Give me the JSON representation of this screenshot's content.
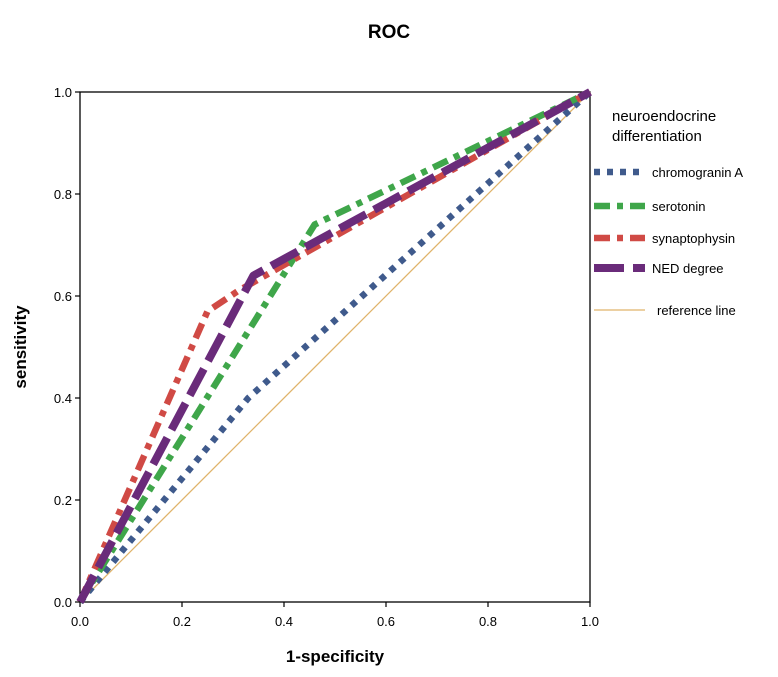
{
  "chart_data": {
    "type": "line",
    "title": "ROC",
    "xlabel": "1-specificity",
    "ylabel": "sensitivity",
    "xlim": [
      0,
      1
    ],
    "ylim": [
      0,
      1
    ],
    "x_ticks": [
      "0.0",
      "0.2",
      "0.4",
      "0.6",
      "0.8",
      "1.0"
    ],
    "y_ticks": [
      "0.0",
      "0.2",
      "0.4",
      "0.6",
      "0.8",
      "1.0"
    ],
    "grid": false,
    "legend": {
      "title": "neuroendocrine differentiation",
      "title_lines": [
        "neuroendocrine",
        "differentiation"
      ],
      "placement": "right"
    },
    "series": [
      {
        "name": "chromogranin A",
        "color": "#3f5a8c",
        "style": "dotted",
        "points": [
          [
            0,
            0
          ],
          [
            0.33,
            0.4
          ],
          [
            1,
            1
          ]
        ]
      },
      {
        "name": "serotonin",
        "color": "#3fa64a",
        "style": "dash-dot",
        "points": [
          [
            0,
            0
          ],
          [
            0.46,
            0.74
          ],
          [
            1,
            1
          ]
        ]
      },
      {
        "name": "synaptophysin",
        "color": "#d04a45",
        "style": "dash-dot",
        "points": [
          [
            0,
            0
          ],
          [
            0.25,
            0.57
          ],
          [
            0.31,
            0.61
          ],
          [
            1,
            1
          ]
        ]
      },
      {
        "name": "NED degree",
        "color": "#6a2b7a",
        "style": "long-dash",
        "points": [
          [
            0,
            0
          ],
          [
            0.34,
            0.64
          ],
          [
            1,
            1
          ]
        ]
      },
      {
        "name": "reference line",
        "color": "#e0b36a",
        "style": "solid",
        "points": [
          [
            0,
            0
          ],
          [
            1,
            1
          ]
        ]
      }
    ]
  }
}
